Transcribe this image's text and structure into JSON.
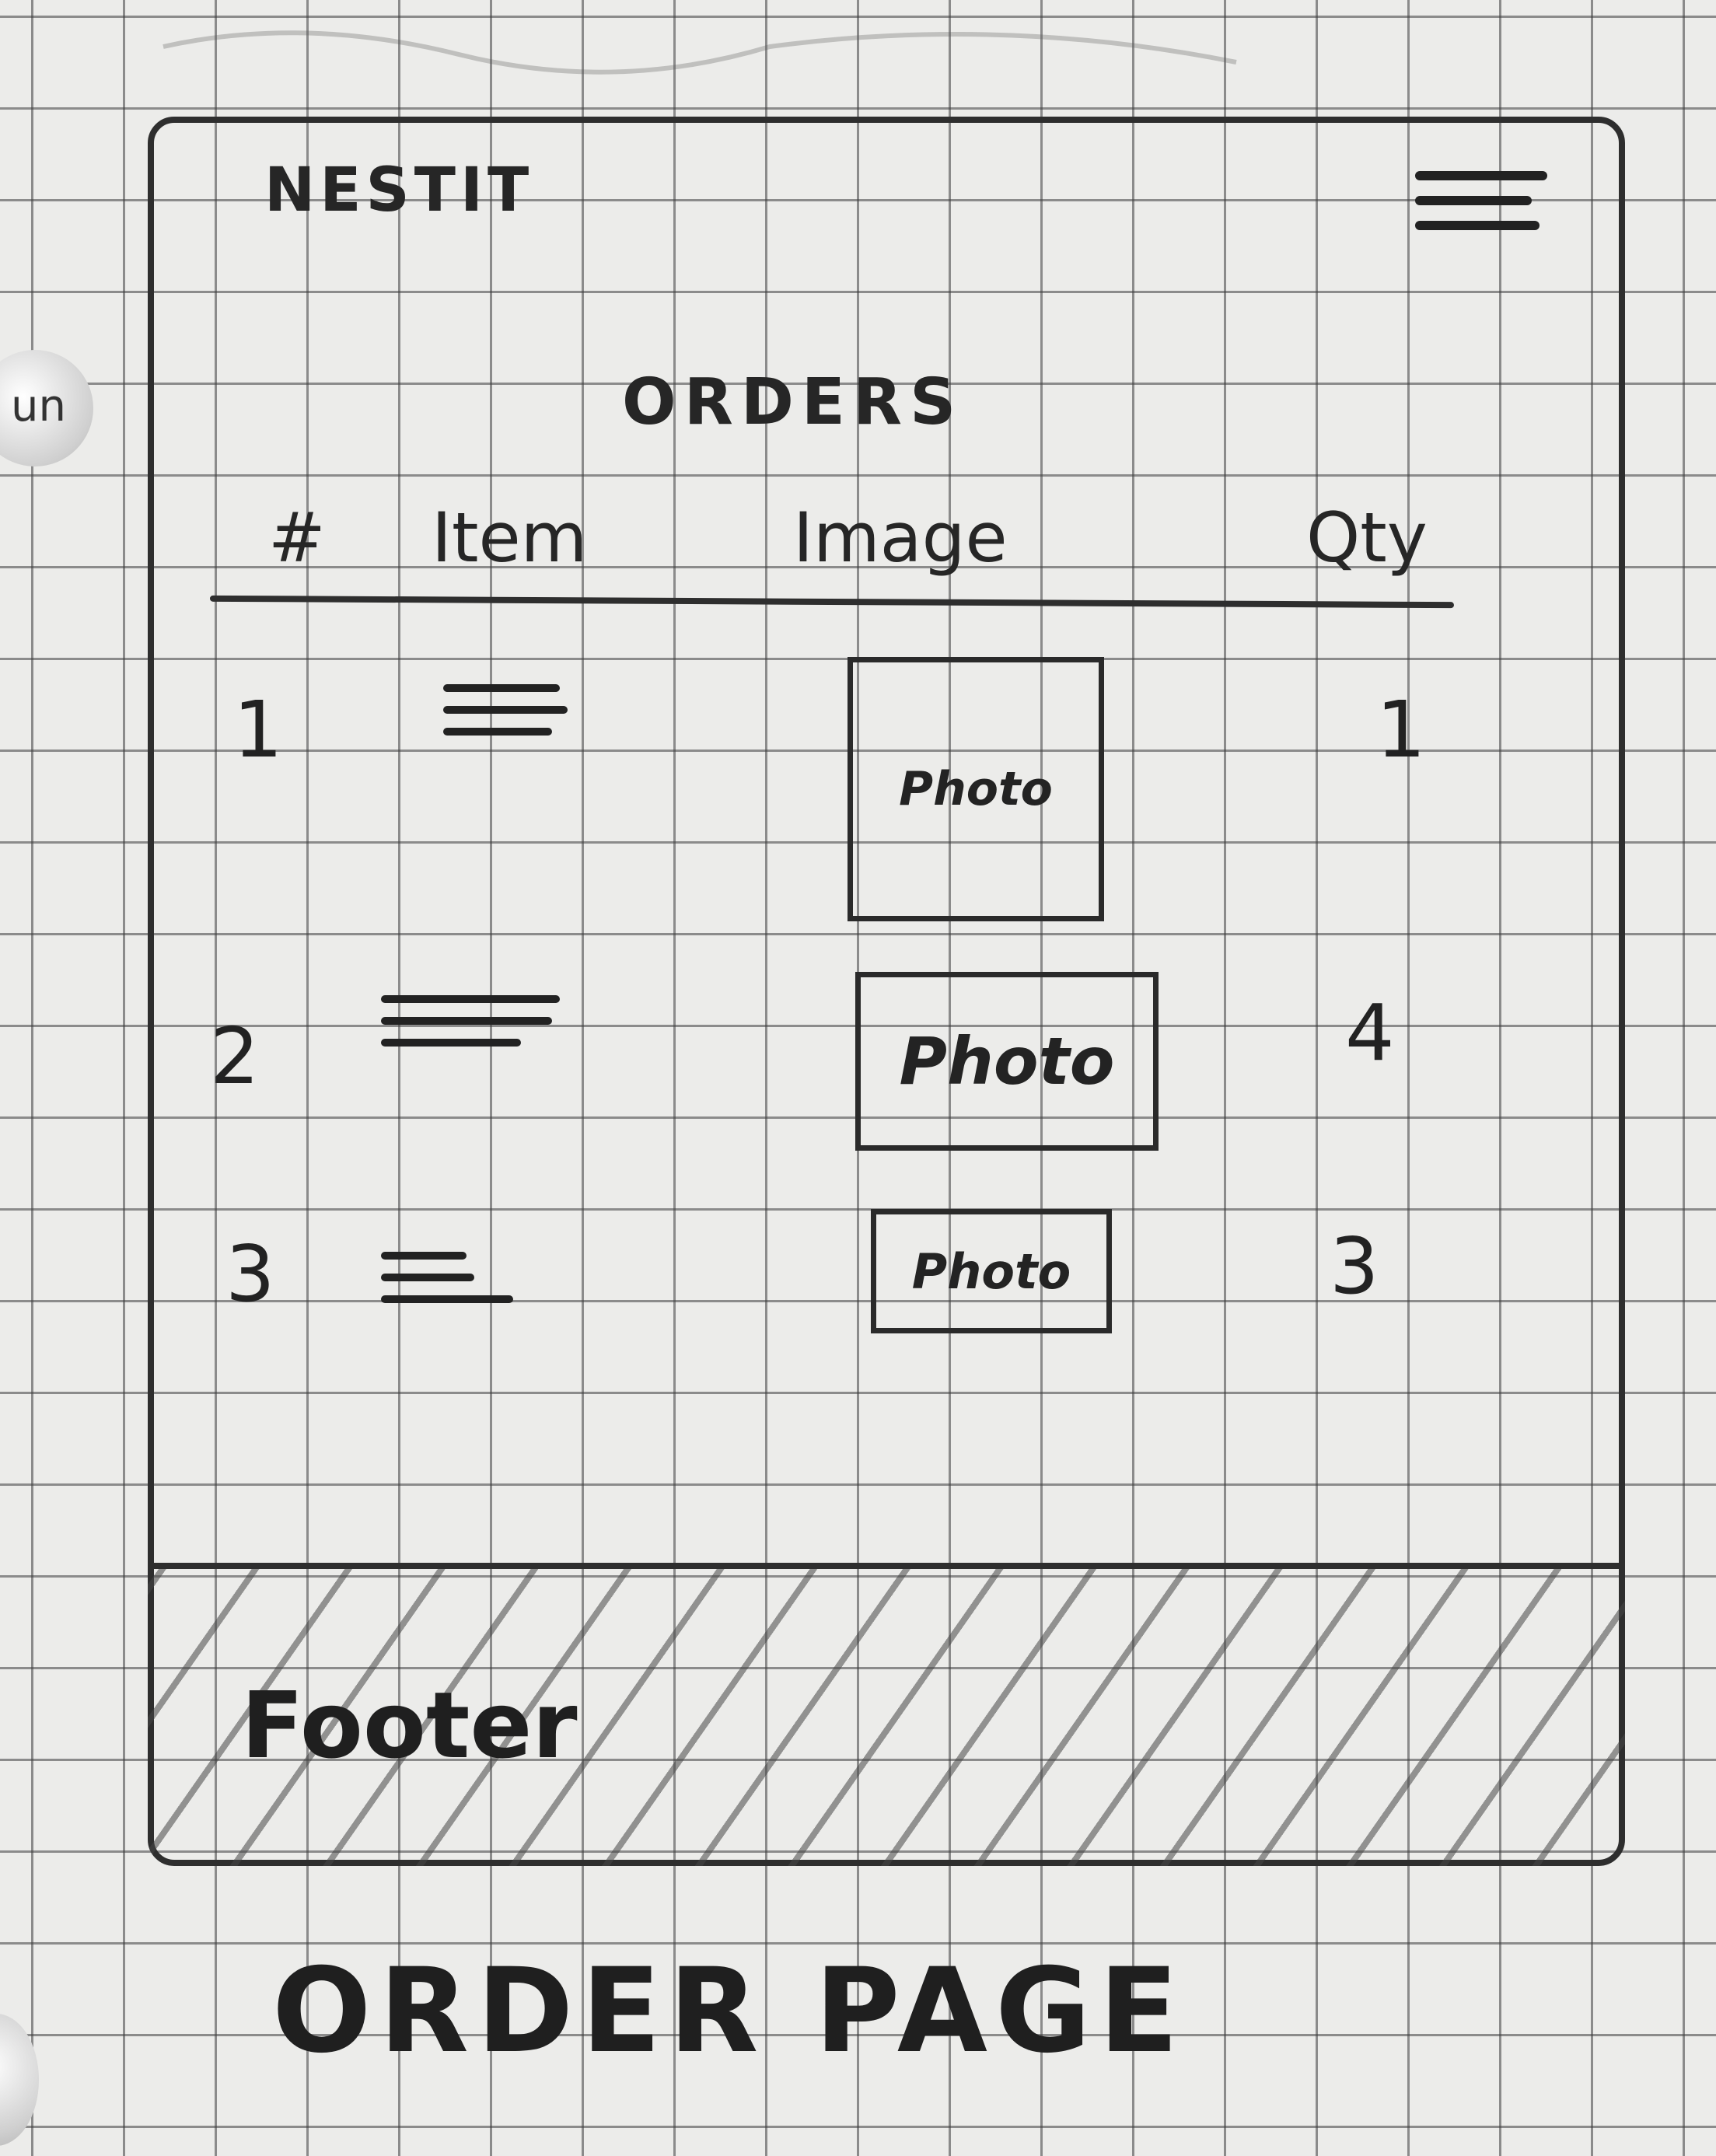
{
  "page": {
    "hole_label": "un",
    "brand": "NESTIT",
    "title": "ORDERS",
    "caption": "ORDER PAGE"
  },
  "table": {
    "headers": [
      "#",
      "Item",
      "Image",
      "Qty"
    ],
    "rows": [
      {
        "num": "1",
        "photo": "Photo",
        "qty": "1"
      },
      {
        "num": "2",
        "photo": "Photo",
        "qty": "4"
      },
      {
        "num": "3",
        "photo": "Photo",
        "qty": "3"
      }
    ]
  },
  "footer": {
    "label": "Footer"
  },
  "icons": {
    "menu": "hamburger-menu-icon",
    "item_placeholder": "text-lines-icon"
  }
}
